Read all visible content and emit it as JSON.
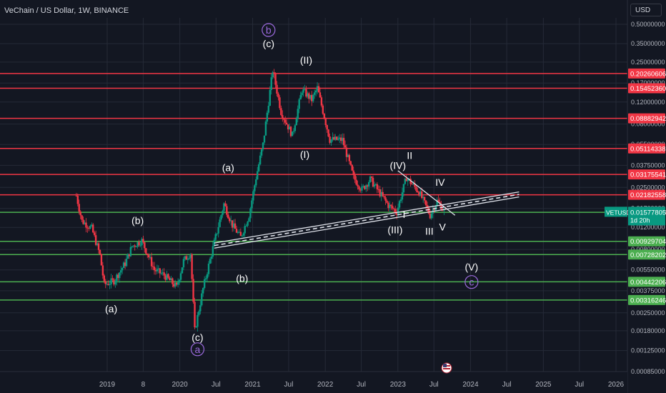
{
  "header": {
    "title": "VeChain / US Dollar, 1W, BINANCE"
  },
  "currency_button": "USD",
  "last_price": {
    "symbol": "VETUSD",
    "value": "0.01577805",
    "countdown": "1d 20h",
    "color": "#089981"
  },
  "colors": {
    "red": "#f23645",
    "green": "#4caf50",
    "up": "#089981",
    "down": "#f23645",
    "purple": "#9c6ade",
    "grid": "#252a37"
  },
  "chart_data": {
    "type": "candlestick",
    "title": "VeChain / US Dollar, 1W, BINANCE",
    "y_scale": "log",
    "ylim": [
      0.00085,
      0.5
    ],
    "y_ticks": [
      "0.50000000",
      "0.35000000",
      "0.25000000",
      "0.17000000",
      "0.12000000",
      "0.08000000",
      "0.05500000",
      "0.03750000",
      "0.02500000",
      "0.01700000",
      "0.01200000",
      "0.00800000",
      "0.00550000",
      "0.00375000",
      "0.00250000",
      "0.00180000",
      "0.00125000",
      "0.00085000"
    ],
    "x_ticks": [
      {
        "label": "2019",
        "date": "2019-01-01"
      },
      {
        "label": "8",
        "date": "2019-07-01"
      },
      {
        "label": "2020",
        "date": "2020-01-01"
      },
      {
        "label": "Jul",
        "date": "2020-07-01"
      },
      {
        "label": "2021",
        "date": "2021-01-01"
      },
      {
        "label": "Jul",
        "date": "2021-07-01"
      },
      {
        "label": "2022",
        "date": "2022-01-01"
      },
      {
        "label": "Jul",
        "date": "2022-07-01"
      },
      {
        "label": "2023",
        "date": "2023-01-01"
      },
      {
        "label": "Jul",
        "date": "2023-07-01"
      },
      {
        "label": "2024",
        "date": "2024-01-01"
      },
      {
        "label": "Jul",
        "date": "2024-07-01"
      },
      {
        "label": "2025",
        "date": "2025-01-01"
      },
      {
        "label": "Jul",
        "date": "2025-07-01"
      },
      {
        "label": "2026",
        "date": "2026-01-01"
      }
    ],
    "price_path": [
      {
        "date": "2018-07-30",
        "price": 0.0215
      },
      {
        "date": "2018-08-27",
        "price": 0.0135
      },
      {
        "date": "2018-10-15",
        "price": 0.0118
      },
      {
        "date": "2018-11-26",
        "price": 0.0072
      },
      {
        "date": "2018-12-17",
        "price": 0.0042
      },
      {
        "date": "2019-02-04",
        "price": 0.0045
      },
      {
        "date": "2019-04-01",
        "price": 0.0062
      },
      {
        "date": "2019-05-06",
        "price": 0.0085
      },
      {
        "date": "2019-06-24",
        "price": 0.0094
      },
      {
        "date": "2019-08-26",
        "price": 0.0055
      },
      {
        "date": "2019-10-14",
        "price": 0.005
      },
      {
        "date": "2019-12-16",
        "price": 0.004
      },
      {
        "date": "2020-01-20",
        "price": 0.0065
      },
      {
        "date": "2020-02-24",
        "price": 0.0075
      },
      {
        "date": "2020-03-16",
        "price": 0.0018
      },
      {
        "date": "2020-04-27",
        "price": 0.0039
      },
      {
        "date": "2020-06-15",
        "price": 0.0082
      },
      {
        "date": "2020-08-10",
        "price": 0.0185
      },
      {
        "date": "2020-09-21",
        "price": 0.0125
      },
      {
        "date": "2020-11-02",
        "price": 0.01
      },
      {
        "date": "2020-12-14",
        "price": 0.015
      },
      {
        "date": "2021-01-18",
        "price": 0.03
      },
      {
        "date": "2021-02-22",
        "price": 0.055
      },
      {
        "date": "2021-04-12",
        "price": 0.215
      },
      {
        "date": "2021-05-24",
        "price": 0.1
      },
      {
        "date": "2021-07-19",
        "price": 0.065
      },
      {
        "date": "2021-09-06",
        "price": 0.15
      },
      {
        "date": "2021-10-25",
        "price": 0.125
      },
      {
        "date": "2021-11-22",
        "price": 0.155
      },
      {
        "date": "2022-01-24",
        "price": 0.06
      },
      {
        "date": "2022-03-28",
        "price": 0.06
      },
      {
        "date": "2022-05-23",
        "price": 0.03
      },
      {
        "date": "2022-07-04",
        "price": 0.024
      },
      {
        "date": "2022-08-15",
        "price": 0.029
      },
      {
        "date": "2022-11-14",
        "price": 0.018
      },
      {
        "date": "2022-12-26",
        "price": 0.016
      },
      {
        "date": "2023-02-13",
        "price": 0.03
      },
      {
        "date": "2023-04-17",
        "price": 0.023
      },
      {
        "date": "2023-06-12",
        "price": 0.015
      },
      {
        "date": "2023-07-17",
        "price": 0.0195
      },
      {
        "date": "2023-08-28",
        "price": 0.0158
      }
    ],
    "horizontal_levels": [
      {
        "price": 0.20260606,
        "label": "0.20260606",
        "color": "red"
      },
      {
        "price": 0.1545236,
        "label": "0.15452360",
        "color": "red"
      },
      {
        "price": 0.08882942,
        "label": "0.08882942",
        "color": "red"
      },
      {
        "price": 0.05114338,
        "label": "0.05114338",
        "color": "red"
      },
      {
        "price": 0.03175541,
        "label": "0.03175541",
        "color": "red"
      },
      {
        "price": 0.02182558,
        "label": "0.02182558",
        "color": "red"
      },
      {
        "price": 0.01583688,
        "label": "0.01583688",
        "color": "green"
      },
      {
        "price": 0.00929704,
        "label": "0.00929704",
        "color": "green"
      },
      {
        "price": 0.00728202,
        "label": "0.00728202",
        "color": "green"
      },
      {
        "price": 0.00442206,
        "label": "0.00442206",
        "color": "green"
      },
      {
        "price": 0.00316246,
        "label": "0.00316246",
        "color": "green"
      }
    ],
    "trendlines": [
      {
        "style": "white-solid",
        "from": {
          "date": "2020-06-22",
          "price": 0.009
        },
        "to": {
          "date": "2024-09-01",
          "price": 0.023
        }
      },
      {
        "style": "white-dashed",
        "from": {
          "date": "2020-06-22",
          "price": 0.0086
        },
        "to": {
          "date": "2024-09-01",
          "price": 0.022
        }
      },
      {
        "style": "white-solid",
        "from": {
          "date": "2020-06-22",
          "price": 0.0082
        },
        "to": {
          "date": "2024-09-01",
          "price": 0.021
        }
      },
      {
        "style": "white-solid",
        "from": {
          "date": "2023-01-01",
          "price": 0.034
        },
        "to": {
          "date": "2023-10-15",
          "price": 0.015
        }
      }
    ],
    "wave_labels": [
      {
        "text": "b",
        "date": "2021-03-22",
        "price": 0.45,
        "circled": true,
        "color": "purple"
      },
      {
        "text": "(c)",
        "date": "2021-03-22",
        "price": 0.35,
        "circled": false,
        "color": "white"
      },
      {
        "text": "(II)",
        "date": "2021-09-27",
        "price": 0.26,
        "circled": false,
        "color": "white"
      },
      {
        "text": "(I)",
        "date": "2021-09-20",
        "price": 0.046,
        "circled": false,
        "color": "white"
      },
      {
        "text": "(a)",
        "date": "2020-08-31",
        "price": 0.036,
        "circled": false,
        "color": "white"
      },
      {
        "text": "(b)",
        "date": "2019-06-03",
        "price": 0.0136,
        "circled": false,
        "color": "white"
      },
      {
        "text": "(a)",
        "date": "2019-01-21",
        "price": 0.0027,
        "circled": false,
        "color": "white"
      },
      {
        "text": "(b)",
        "date": "2020-11-09",
        "price": 0.0047,
        "circled": false,
        "color": "white"
      },
      {
        "text": "(c)",
        "date": "2020-03-30",
        "price": 0.0016,
        "circled": false,
        "color": "white"
      },
      {
        "text": "a",
        "date": "2020-03-30",
        "price": 0.00128,
        "circled": true,
        "color": "purple"
      },
      {
        "text": "(IV)",
        "date": "2023-01-01",
        "price": 0.0375,
        "circled": false,
        "color": "white"
      },
      {
        "text": "II",
        "date": "2023-03-01",
        "price": 0.045,
        "circled": false,
        "color": "white"
      },
      {
        "text": "IV",
        "date": "2023-08-01",
        "price": 0.0275,
        "circled": false,
        "color": "white"
      },
      {
        "text": "I",
        "date": "2023-02-01",
        "price": 0.0152,
        "circled": false,
        "color": "white"
      },
      {
        "text": "(III)",
        "date": "2022-12-18",
        "price": 0.0115,
        "circled": false,
        "color": "white"
      },
      {
        "text": "III",
        "date": "2023-06-08",
        "price": 0.0112,
        "circled": false,
        "color": "white"
      },
      {
        "text": "V",
        "date": "2023-08-13",
        "price": 0.0121,
        "circled": false,
        "color": "white"
      },
      {
        "text": "(V)",
        "date": "2024-01-06",
        "price": 0.0058,
        "circled": false,
        "color": "white"
      },
      {
        "text": "c",
        "date": "2024-01-06",
        "price": 0.0044,
        "circled": true,
        "color": "purple"
      }
    ]
  }
}
